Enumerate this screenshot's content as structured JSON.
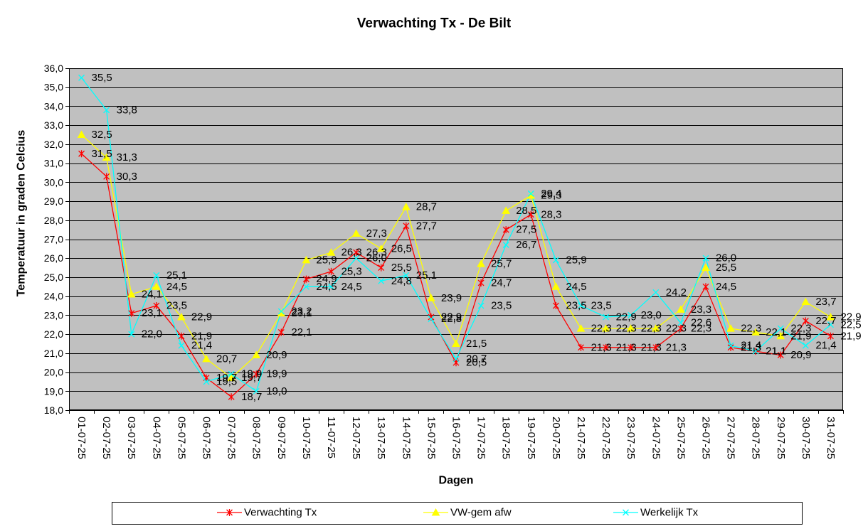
{
  "chart_data": {
    "type": "line",
    "title": "Verwachting Tx - De Bilt",
    "xlabel": "Dagen",
    "ylabel": "Temperatuur in graden Celcius",
    "categories": [
      "01-07-25",
      "02-07-25",
      "03-07-25",
      "04-07-25",
      "05-07-25",
      "06-07-25",
      "07-07-25",
      "08-07-25",
      "09-07-25",
      "10-07-25",
      "11-07-25",
      "12-07-25",
      "13-07-25",
      "14-07-25",
      "15-07-25",
      "16-07-25",
      "17-07-25",
      "18-07-25",
      "19-07-25",
      "20-07-25",
      "21-07-25",
      "22-07-25",
      "23-07-25",
      "24-07-25",
      "25-07-25",
      "26-07-25",
      "27-07-25",
      "28-07-25",
      "29-07-25",
      "30-07-25",
      "31-07-25"
    ],
    "ylim": [
      18,
      36
    ],
    "yticks": [
      18,
      19,
      20,
      21,
      22,
      23,
      24,
      25,
      26,
      27,
      28,
      29,
      30,
      31,
      32,
      33,
      34,
      35,
      36
    ],
    "grid": {
      "horizontal": true,
      "vertical": false
    },
    "legend_position": "bottom",
    "data_labels": true,
    "plot_background": "#C0C0C0",
    "series": [
      {
        "name": "Verwachting Tx",
        "color": "#FF0000",
        "marker": "star",
        "values": [
          31.5,
          30.3,
          23.1,
          23.5,
          21.9,
          19.7,
          18.7,
          19.9,
          22.1,
          24.9,
          25.3,
          26.3,
          25.5,
          27.7,
          22.9,
          20.5,
          24.7,
          27.5,
          28.3,
          23.5,
          21.3,
          21.3,
          21.3,
          21.3,
          22.3,
          24.5,
          21.3,
          21.1,
          20.9,
          22.7,
          21.9
        ]
      },
      {
        "name": "VW-gem afw",
        "color": "#FFFF00",
        "marker": "triangle",
        "values": [
          32.5,
          31.3,
          24.1,
          24.5,
          22.9,
          20.7,
          19.7,
          20.9,
          23.1,
          25.9,
          26.3,
          27.3,
          26.5,
          28.7,
          23.9,
          21.5,
          25.7,
          28.5,
          29.3,
          24.5,
          22.3,
          22.3,
          22.3,
          22.3,
          23.3,
          25.5,
          22.3,
          22.1,
          21.9,
          23.7,
          22.9
        ]
      },
      {
        "name": "Werkelijk Tx",
        "color": "#00FFFF",
        "marker": "x",
        "values": [
          35.5,
          33.8,
          22.0,
          25.1,
          21.4,
          19.5,
          19.9,
          19.0,
          23.2,
          24.5,
          24.5,
          26.0,
          24.8,
          25.1,
          22.8,
          20.7,
          23.5,
          26.7,
          29.4,
          25.9,
          23.5,
          22.9,
          23.0,
          24.2,
          22.6,
          26.0,
          21.4,
          21.1,
          22.3,
          21.4,
          22.5
        ]
      }
    ]
  }
}
